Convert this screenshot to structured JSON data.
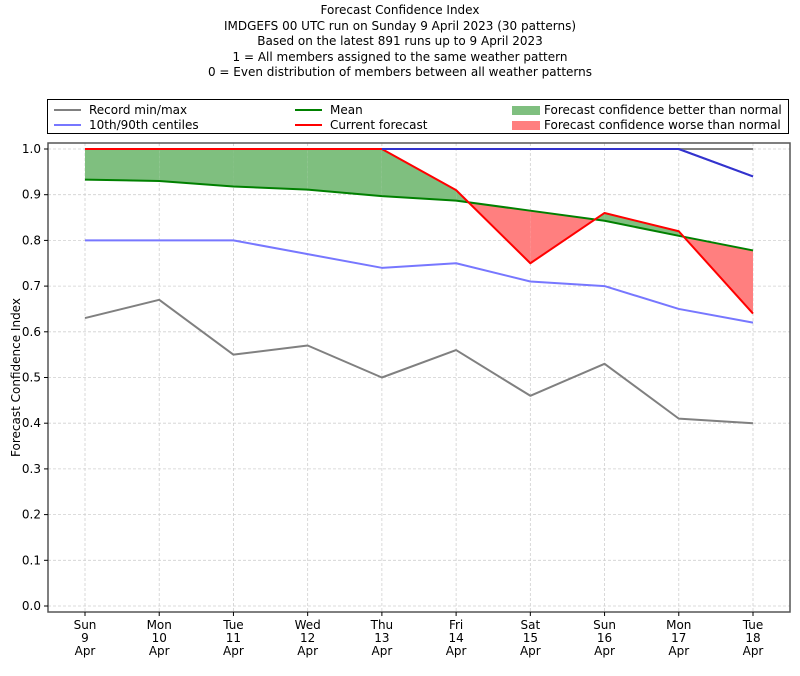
{
  "chart_data": {
    "type": "line",
    "title": "Forecast Confidence Index",
    "subtitle_lines": [
      "IMDGEFS 00 UTC run on Sunday 9 April 2023 (30 patterns)",
      "Based on the latest 891 runs up to 9 April 2023",
      "1 = All members assigned to the same weather pattern",
      "0 = Even distribution of members between all weather patterns"
    ],
    "xlabel": "",
    "ylabel": "Forecast Confidence Index",
    "ylim": [
      0.0,
      1.0
    ],
    "yticks": [
      "0.0",
      "0.1",
      "0.2",
      "0.3",
      "0.4",
      "0.5",
      "0.6",
      "0.7",
      "0.8",
      "0.9",
      "1.0"
    ],
    "grid": true,
    "legend_position": "top (above plot, outside)",
    "categories": [
      {
        "dow": "Sun",
        "day": "9",
        "month": "Apr"
      },
      {
        "dow": "Mon",
        "day": "10",
        "month": "Apr"
      },
      {
        "dow": "Tue",
        "day": "11",
        "month": "Apr"
      },
      {
        "dow": "Wed",
        "day": "12",
        "month": "Apr"
      },
      {
        "dow": "Thu",
        "day": "13",
        "month": "Apr"
      },
      {
        "dow": "Fri",
        "day": "14",
        "month": "Apr"
      },
      {
        "dow": "Sat",
        "day": "15",
        "month": "Apr"
      },
      {
        "dow": "Sun",
        "day": "16",
        "month": "Apr"
      },
      {
        "dow": "Mon",
        "day": "17",
        "month": "Apr"
      },
      {
        "dow": "Tue",
        "day": "18",
        "month": "Apr"
      }
    ],
    "series": [
      {
        "name": "Record min",
        "legend": "Record min/max",
        "color": "#808080",
        "values": [
          0.63,
          0.67,
          0.55,
          0.57,
          0.5,
          0.56,
          0.46,
          0.53,
          0.41,
          0.4
        ]
      },
      {
        "name": "Record max",
        "color": "#808080",
        "values": [
          1.0,
          1.0,
          1.0,
          1.0,
          1.0,
          1.0,
          1.0,
          1.0,
          1.0,
          1.0
        ]
      },
      {
        "name": "10th centile",
        "legend": "10th/90th centiles",
        "color": "#7777ff",
        "values": [
          0.8,
          0.8,
          0.8,
          0.77,
          0.74,
          0.75,
          0.71,
          0.7,
          0.65,
          0.62
        ]
      },
      {
        "name": "90th centile",
        "color": "#7777ff",
        "values": [
          1.0,
          1.0,
          1.0,
          1.0,
          1.0,
          1.0,
          1.0,
          1.0,
          1.0,
          0.94
        ]
      },
      {
        "name": "Mean",
        "legend": "Mean",
        "color": "#008000",
        "values": [
          0.933,
          0.93,
          0.918,
          0.911,
          0.897,
          0.887,
          0.865,
          0.843,
          0.81,
          0.778
        ]
      },
      {
        "name": "Current forecast",
        "legend": "Current forecast",
        "color": "#ff0000",
        "values": [
          1.0,
          1.0,
          1.0,
          1.0,
          1.0,
          0.91,
          0.75,
          0.86,
          0.82,
          0.64
        ]
      }
    ],
    "fills": [
      {
        "name": "Forecast confidence better than normal",
        "color": "#7fbf7f",
        "condition": "current > mean"
      },
      {
        "name": "Forecast confidence worse than normal",
        "color": "#ff7f7f",
        "condition": "current < mean"
      }
    ]
  },
  "legend": {
    "record": "Record min/max",
    "centiles": "10th/90th centiles",
    "mean": "Mean",
    "current": "Current forecast",
    "better": "Forecast confidence better than normal",
    "worse": "Forecast confidence worse than normal"
  }
}
